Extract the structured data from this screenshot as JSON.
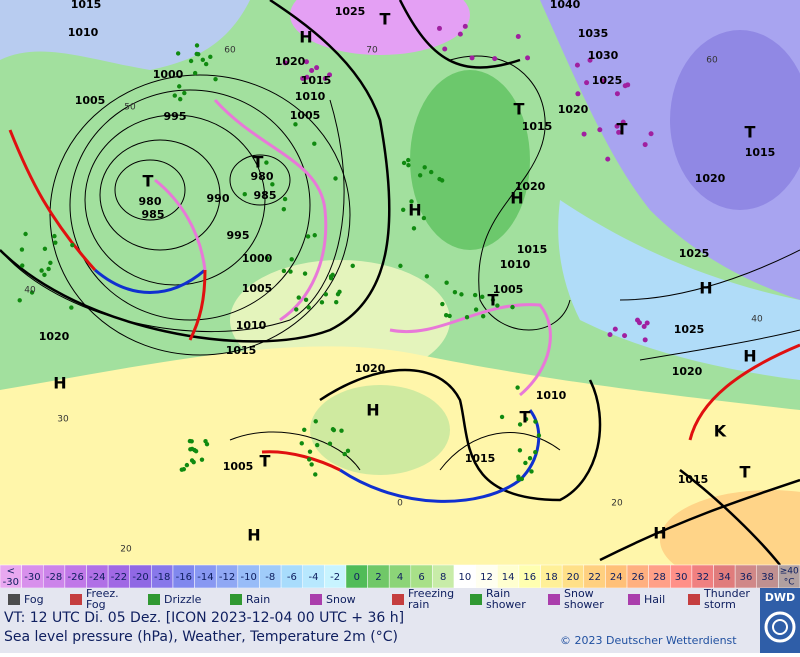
{
  "map": {
    "pressure_labels": [
      "1015",
      "1010",
      "1000",
      "1005",
      "995",
      "980",
      "985",
      "T",
      "980",
      "985",
      "T",
      "990",
      "995",
      "1000",
      "1005",
      "1010",
      "1015",
      "1020",
      "H",
      "1025",
      "T",
      "H",
      "1020",
      "1015",
      "1010",
      "1005",
      "1040",
      "1035",
      "1030",
      "1025",
      "1020",
      "1015",
      "T",
      "T",
      "T",
      "1015",
      "1020",
      "1020",
      "H",
      "H",
      "1015",
      "1010",
      "1005",
      "T",
      "1025",
      "H",
      "1025",
      "1020",
      "H",
      "1020",
      "H",
      "1010",
      "T",
      "1015",
      "1005",
      "T",
      "1015",
      "T",
      "H",
      "H",
      "K"
    ],
    "grid_labels": [
      "60",
      "50",
      "40",
      "30",
      "20",
      "70",
      "60",
      "40",
      "20",
      "0"
    ]
  },
  "temperature_scale": {
    "min_label": [
      "<",
      "-30"
    ],
    "min_color": "#e8a8f0",
    "steps": [
      -30,
      -28,
      -26,
      -24,
      -22,
      -20,
      -18,
      -16,
      -14,
      -12,
      -10,
      -8,
      -6,
      -4,
      -2,
      0,
      2,
      4,
      6,
      8,
      10,
      12,
      14,
      16,
      18,
      20,
      22,
      24,
      26,
      28,
      30,
      32,
      34,
      36,
      38
    ],
    "colors": [
      "#d890ec",
      "#cc84ea",
      "#c078e8",
      "#b070e6",
      "#a068e4",
      "#9068e4",
      "#8878ea",
      "#8088ee",
      "#8898f2",
      "#90a8f4",
      "#98bcf8",
      "#a0ccfa",
      "#a8dcfc",
      "#b8e8fe",
      "#c8f4ff",
      "#50bc58",
      "#70c868",
      "#8cd478",
      "#a8e088",
      "#c8eca8",
      "#ffffff",
      "#fffff0",
      "#ffffd0",
      "#ffffb0",
      "#fff098",
      "#ffe088",
      "#ffd080",
      "#ffc078",
      "#ffb080",
      "#ffa088",
      "#ff9088",
      "#f08080",
      "#e07c7c",
      "#d08888",
      "#c09090"
    ],
    "max_label": [
      "≥40",
      "°C"
    ],
    "max_color": "#b0a0a0"
  },
  "weather_legend": [
    {
      "lines": [
        "Fog"
      ]
    },
    {
      "lines": [
        "Freez.",
        "Fog"
      ]
    },
    {
      "lines": [
        "Drizzle"
      ]
    },
    {
      "lines": [
        "Rain"
      ]
    },
    {
      "lines": [
        "Snow"
      ]
    },
    {
      "lines": [
        "Freezing",
        "rain"
      ]
    },
    {
      "lines": [
        "Rain",
        "shower"
      ]
    },
    {
      "lines": [
        "Snow",
        "shower"
      ]
    },
    {
      "lines": [
        "Hail"
      ]
    },
    {
      "lines": [
        "Thunder",
        "storm"
      ]
    }
  ],
  "footer": {
    "valid_time": "VT: 12 UTC Di.  05 Dez. [ICON 2023-12-04  00 UTC + 36 h]",
    "description": "Sea level pressure (hPa), Weather, Temperature 2m (°C)",
    "copyright": "© 2023 Deutscher Wetterdienst",
    "logo": "DWD"
  }
}
